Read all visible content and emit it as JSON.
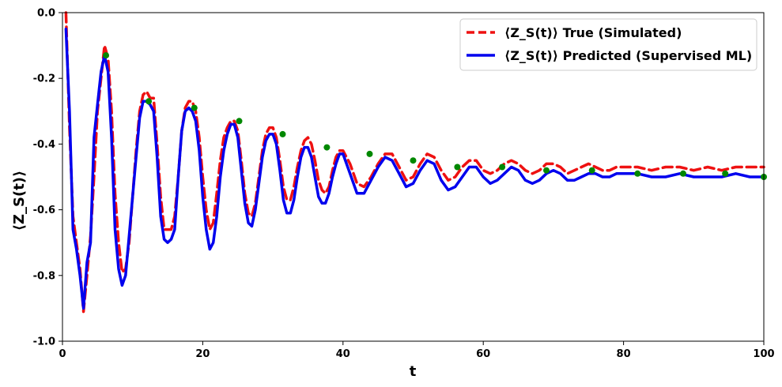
{
  "chart_data": {
    "type": "line",
    "xlabel": "t",
    "ylabel": "⟨Z_S(t)⟩",
    "xlim": [
      0,
      100
    ],
    "ylim": [
      -1.0,
      0.0
    ],
    "xticks": [
      "0",
      "20",
      "40",
      "60",
      "80",
      "100"
    ],
    "yticks": [
      "0.0",
      "-0.2",
      "-0.4",
      "-0.6",
      "-0.8",
      "-1.0"
    ],
    "grid": false,
    "legend_position": "top-right",
    "series": [
      {
        "name": "⟨Z_S(t)⟩ True (Simulated)",
        "color": "#ee1111",
        "style": "dashed",
        "x": [
          0.5,
          1.0,
          1.5,
          2.0,
          2.5,
          3.0,
          3.5,
          4.0,
          4.5,
          5.0,
          5.5,
          6.0,
          6.5,
          7.0,
          7.5,
          8.0,
          8.5,
          9.0,
          9.5,
          10.0,
          10.5,
          11.0,
          11.5,
          12.0,
          12.5,
          13.0,
          13.5,
          14.0,
          14.5,
          15.0,
          15.5,
          16.0,
          16.5,
          17.0,
          17.5,
          18.0,
          18.5,
          19.0,
          19.5,
          20.0,
          20.5,
          21.0,
          21.5,
          22.0,
          22.5,
          23.0,
          23.5,
          24.0,
          24.5,
          25.0,
          25.5,
          26.0,
          26.5,
          27.0,
          27.5,
          28.0,
          28.5,
          29.0,
          29.5,
          30.0,
          30.5,
          31.0,
          31.5,
          32.0,
          32.5,
          33.0,
          33.5,
          34.0,
          34.5,
          35.0,
          35.5,
          36.0,
          36.5,
          37.0,
          37.5,
          38.0,
          38.5,
          39.0,
          39.5,
          40.0,
          41.0,
          42.0,
          43.0,
          44.0,
          45.0,
          46.0,
          47.0,
          48.0,
          49.0,
          50.0,
          51.0,
          52.0,
          53.0,
          54.0,
          55.0,
          56.0,
          57.0,
          58.0,
          59.0,
          60.0,
          61.0,
          62.0,
          63.0,
          64.0,
          65.0,
          66.0,
          67.0,
          68.0,
          69.0,
          70.0,
          71.0,
          72.0,
          73.0,
          74.0,
          75.0,
          76.0,
          77.0,
          78.0,
          79.0,
          80.0,
          82.0,
          84.0,
          86.0,
          88.0,
          90.0,
          92.0,
          94.0,
          96.0,
          98.0,
          100.0
        ],
        "y": [
          0.0,
          -0.35,
          -0.62,
          -0.7,
          -0.78,
          -0.91,
          -0.8,
          -0.68,
          -0.5,
          -0.3,
          -0.2,
          -0.1,
          -0.14,
          -0.3,
          -0.55,
          -0.7,
          -0.79,
          -0.78,
          -0.7,
          -0.56,
          -0.42,
          -0.3,
          -0.25,
          -0.24,
          -0.26,
          -0.26,
          -0.4,
          -0.56,
          -0.66,
          -0.66,
          -0.66,
          -0.62,
          -0.5,
          -0.36,
          -0.29,
          -0.27,
          -0.27,
          -0.3,
          -0.38,
          -0.5,
          -0.6,
          -0.66,
          -0.64,
          -0.55,
          -0.45,
          -0.38,
          -0.35,
          -0.33,
          -0.33,
          -0.36,
          -0.45,
          -0.55,
          -0.61,
          -0.62,
          -0.58,
          -0.5,
          -0.42,
          -0.37,
          -0.35,
          -0.35,
          -0.38,
          -0.45,
          -0.53,
          -0.57,
          -0.57,
          -0.53,
          -0.47,
          -0.42,
          -0.39,
          -0.38,
          -0.4,
          -0.45,
          -0.51,
          -0.54,
          -0.55,
          -0.53,
          -0.48,
          -0.44,
          -0.42,
          -0.42,
          -0.46,
          -0.52,
          -0.53,
          -0.5,
          -0.46,
          -0.43,
          -0.43,
          -0.47,
          -0.51,
          -0.5,
          -0.46,
          -0.43,
          -0.44,
          -0.48,
          -0.51,
          -0.5,
          -0.47,
          -0.45,
          -0.45,
          -0.48,
          -0.49,
          -0.48,
          -0.46,
          -0.45,
          -0.46,
          -0.48,
          -0.49,
          -0.48,
          -0.46,
          -0.46,
          -0.47,
          -0.49,
          -0.48,
          -0.47,
          -0.46,
          -0.47,
          -0.48,
          -0.48,
          -0.47,
          -0.47,
          -0.47,
          -0.48,
          -0.47,
          -0.47,
          -0.48,
          -0.47,
          -0.48,
          -0.47,
          -0.47,
          -0.47
        ]
      },
      {
        "name": "⟨Z_S(t)⟩ Predicted (Supervised ML)",
        "color": "#0000ee",
        "style": "solid",
        "x": [
          0.5,
          1.0,
          1.5,
          2.0,
          2.5,
          3.0,
          3.5,
          4.0,
          4.5,
          5.0,
          5.5,
          6.0,
          6.5,
          7.0,
          7.5,
          8.0,
          8.5,
          9.0,
          9.5,
          10.0,
          10.5,
          11.0,
          11.5,
          12.0,
          12.5,
          13.0,
          13.5,
          14.0,
          14.5,
          15.0,
          15.5,
          16.0,
          16.5,
          17.0,
          17.5,
          18.0,
          18.5,
          19.0,
          19.5,
          20.0,
          20.5,
          21.0,
          21.5,
          22.0,
          22.5,
          23.0,
          23.5,
          24.0,
          24.5,
          25.0,
          25.5,
          26.0,
          26.5,
          27.0,
          27.5,
          28.0,
          28.5,
          29.0,
          29.5,
          30.0,
          30.5,
          31.0,
          31.5,
          32.0,
          32.5,
          33.0,
          33.5,
          34.0,
          34.5,
          35.0,
          35.5,
          36.0,
          36.5,
          37.0,
          37.5,
          38.0,
          38.5,
          39.0,
          39.5,
          40.0,
          41.0,
          42.0,
          43.0,
          44.0,
          45.0,
          46.0,
          47.0,
          48.0,
          49.0,
          50.0,
          51.0,
          52.0,
          53.0,
          54.0,
          55.0,
          56.0,
          57.0,
          58.0,
          59.0,
          60.0,
          61.0,
          62.0,
          63.0,
          64.0,
          65.0,
          66.0,
          67.0,
          68.0,
          69.0,
          70.0,
          71.0,
          72.0,
          73.0,
          74.0,
          75.0,
          76.0,
          77.0,
          78.0,
          79.0,
          80.0,
          82.0,
          84.0,
          86.0,
          88.0,
          90.0,
          92.0,
          94.0,
          96.0,
          98.0,
          100.0
        ],
        "y": [
          -0.05,
          -0.3,
          -0.66,
          -0.72,
          -0.8,
          -0.9,
          -0.76,
          -0.7,
          -0.38,
          -0.28,
          -0.18,
          -0.13,
          -0.18,
          -0.38,
          -0.66,
          -0.78,
          -0.83,
          -0.8,
          -0.68,
          -0.56,
          -0.44,
          -0.32,
          -0.27,
          -0.27,
          -0.28,
          -0.3,
          -0.44,
          -0.62,
          -0.69,
          -0.7,
          -0.69,
          -0.66,
          -0.5,
          -0.36,
          -0.3,
          -0.29,
          -0.3,
          -0.33,
          -0.42,
          -0.56,
          -0.66,
          -0.72,
          -0.7,
          -0.62,
          -0.5,
          -0.42,
          -0.37,
          -0.34,
          -0.34,
          -0.38,
          -0.48,
          -0.58,
          -0.64,
          -0.65,
          -0.6,
          -0.52,
          -0.44,
          -0.39,
          -0.37,
          -0.37,
          -0.4,
          -0.48,
          -0.57,
          -0.61,
          -0.61,
          -0.57,
          -0.5,
          -0.44,
          -0.41,
          -0.41,
          -0.44,
          -0.5,
          -0.56,
          -0.58,
          -0.58,
          -0.55,
          -0.5,
          -0.46,
          -0.43,
          -0.43,
          -0.49,
          -0.55,
          -0.55,
          -0.51,
          -0.47,
          -0.44,
          -0.45,
          -0.49,
          -0.53,
          -0.52,
          -0.48,
          -0.45,
          -0.46,
          -0.51,
          -0.54,
          -0.53,
          -0.5,
          -0.47,
          -0.47,
          -0.5,
          -0.52,
          -0.51,
          -0.49,
          -0.47,
          -0.48,
          -0.51,
          -0.52,
          -0.51,
          -0.49,
          -0.48,
          -0.49,
          -0.51,
          -0.51,
          -0.5,
          -0.49,
          -0.49,
          -0.5,
          -0.5,
          -0.49,
          -0.49,
          -0.49,
          -0.5,
          -0.5,
          -0.49,
          -0.5,
          -0.5,
          -0.5,
          -0.49,
          -0.5,
          -0.5
        ]
      }
    ],
    "markers": {
      "color": "#008800",
      "x": [
        6.2,
        12.3,
        18.8,
        25.2,
        31.4,
        37.7,
        43.8,
        50.0,
        56.3,
        62.7,
        69.0,
        75.5,
        82.0,
        88.5,
        94.5,
        100.0
      ],
      "y": [
        -0.13,
        -0.27,
        -0.29,
        -0.33,
        -0.37,
        -0.41,
        -0.43,
        -0.45,
        -0.47,
        -0.47,
        -0.48,
        -0.48,
        -0.49,
        -0.49,
        -0.49,
        -0.5
      ]
    }
  }
}
